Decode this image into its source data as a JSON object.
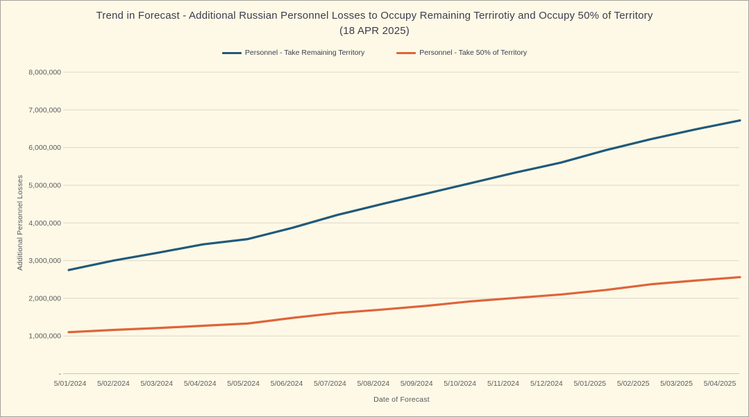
{
  "chart_data": {
    "type": "line",
    "title": "Trend in Forecast - Additional Russian Personnel Losses to Occupy Remaining Terrirotiy and Occupy 50% of Territory",
    "subtitle": "(18 APR 2025)",
    "xlabel": "Date of Forecast",
    "ylabel": "Additional Personnel Losses",
    "categories": [
      "5/01/2024",
      "5/02/2024",
      "5/03/2024",
      "5/04/2024",
      "5/05/2024",
      "5/06/2024",
      "5/07/2024",
      "5/08/2024",
      "5/09/2024",
      "5/10/2024",
      "5/11/2024",
      "5/12/2024",
      "5/01/2025",
      "5/02/2025",
      "5/03/2025",
      "5/04/2025"
    ],
    "series": [
      {
        "name": "Personnel - Take Remaining Territory",
        "color": "#21597A",
        "values": [
          2750000,
          3000000,
          3210000,
          3430000,
          3570000,
          3870000,
          4210000,
          4500000,
          4780000,
          5060000,
          5340000,
          5600000,
          5930000,
          6220000,
          6480000,
          6720000
        ]
      },
      {
        "name": "Personnel - Take 50% of Territory",
        "color": "#E0633A",
        "values": [
          1100000,
          1160000,
          1210000,
          1270000,
          1330000,
          1480000,
          1610000,
          1700000,
          1800000,
          1920000,
          2010000,
          2100000,
          2220000,
          2370000,
          2470000,
          2560000
        ]
      }
    ],
    "ylim": [
      0,
      8000000
    ],
    "ytick_interval": 1000000,
    "ytick_labels": [
      "-",
      "1,000,000",
      "2,000,000",
      "3,000,000",
      "4,000,000",
      "5,000,000",
      "6,000,000",
      "7,000,000",
      "8,000,000"
    ],
    "grid": "horizontal",
    "legend_position": "top-center",
    "colors": {
      "background": "#FDF9E6",
      "gridline": "#DBD8CC",
      "axis_line": "#C9C6BA",
      "tick_text": "#5A5A60",
      "title_text": "#3C3C4E",
      "border": "#A3A39B"
    }
  }
}
